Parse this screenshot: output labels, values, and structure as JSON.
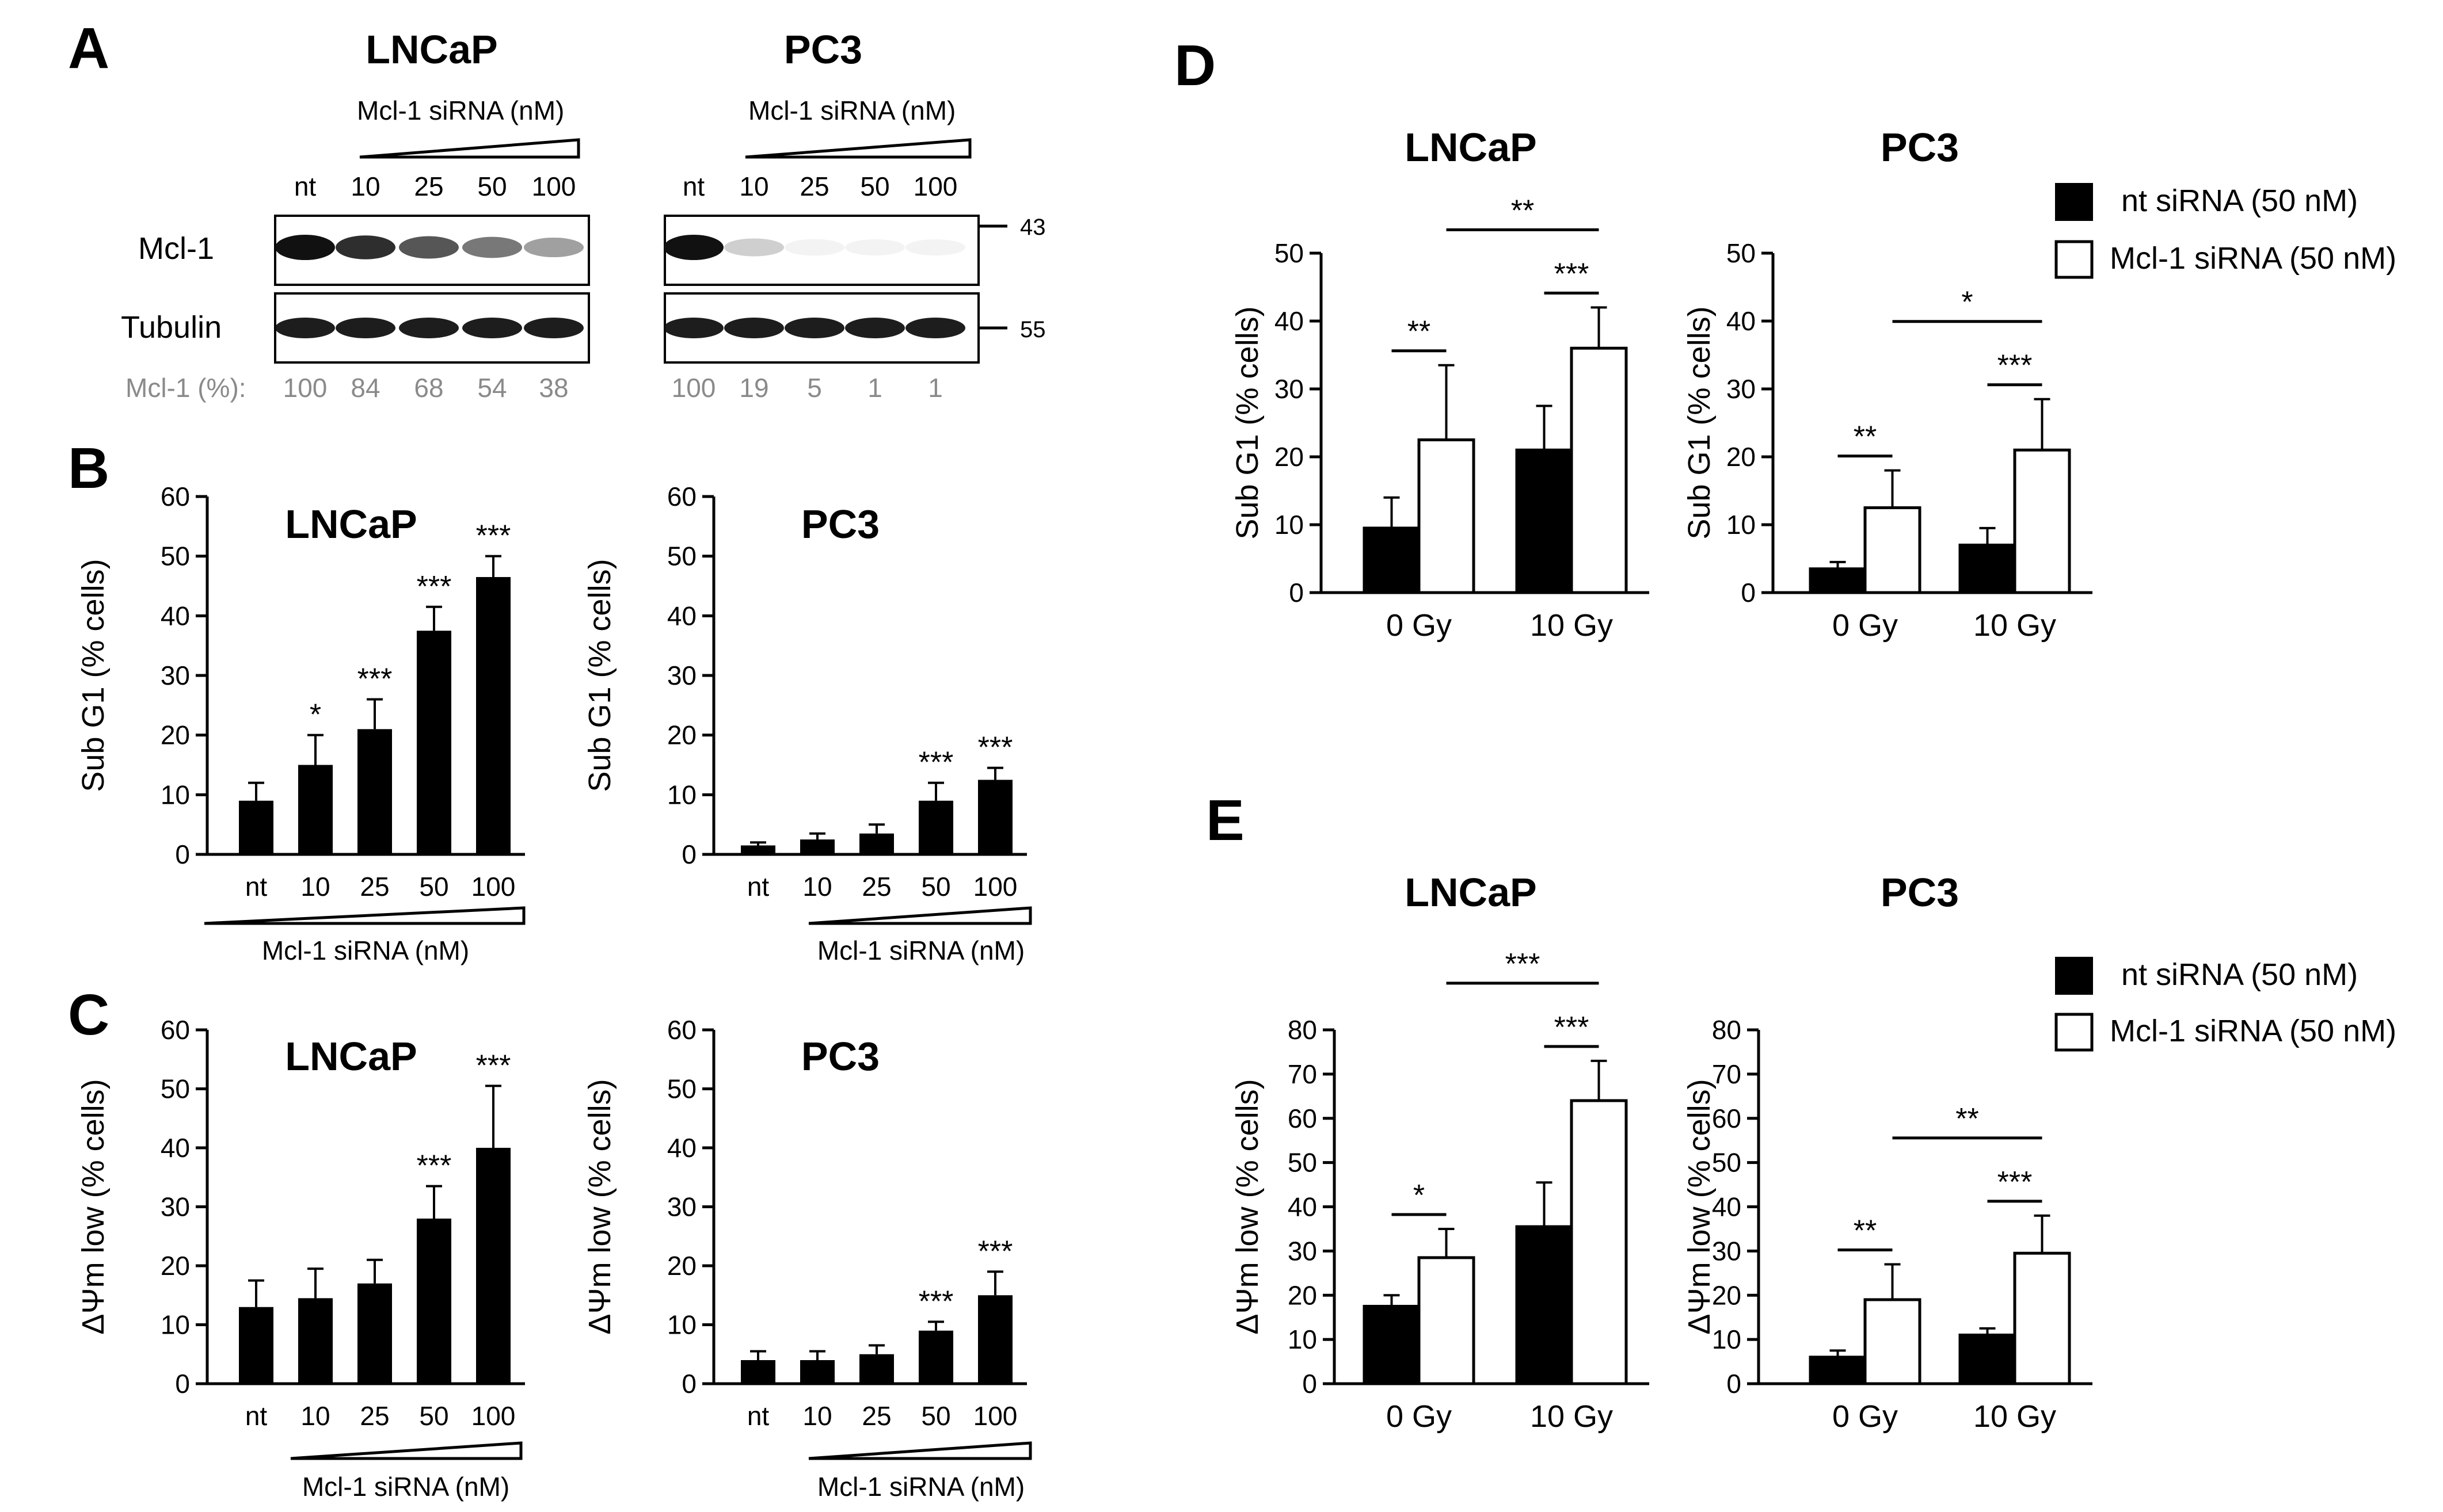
{
  "colors": {
    "ink": "#000000",
    "muted": "#8a8a8a",
    "bar_fill": "#000000",
    "bar_open": "#ffffff",
    "band": "#111111"
  },
  "panels": {
    "A": {
      "letter": "A",
      "blots": [
        {
          "cell": "LNCaP",
          "siRNA_label": "Mcl-1 siRNA  (nM)",
          "lanes": [
            "nt",
            "10",
            "25",
            "50",
            "100"
          ],
          "quant": [
            "100",
            "84",
            "68",
            "54",
            "38"
          ],
          "mcl1_fraction": [
            1.0,
            0.84,
            0.68,
            0.54,
            0.38
          ]
        },
        {
          "cell": "PC3",
          "siRNA_label": "Mcl-1 siRNA  (nM)",
          "lanes": [
            "nt",
            "10",
            "25",
            "50",
            "100"
          ],
          "quant": [
            "100",
            "19",
            "5",
            "1",
            "1"
          ],
          "mcl1_fraction": [
            1.0,
            0.19,
            0.05,
            0.01,
            0.01
          ]
        }
      ],
      "row_labels": [
        "Mcl-1",
        "Tubulin"
      ],
      "quant_label": "Mcl-1 (%):",
      "mw_markers": [
        "43",
        "55"
      ]
    },
    "B": {
      "letter": "B"
    },
    "C": {
      "letter": "C"
    },
    "D": {
      "letter": "D"
    },
    "E": {
      "letter": "E"
    }
  },
  "legend": {
    "items": [
      "nt siRNA (50 nM)",
      "Mcl-1 siRNA (50 nM)"
    ]
  },
  "chart_data": [
    {
      "panel": "B",
      "type": "bar",
      "title": "LNCaP",
      "ylabel": "Sub G1 (% cells)",
      "xlabel": "Mcl-1 siRNA  (nM)",
      "ylim": [
        0,
        60
      ],
      "yticks": [
        "0",
        "10",
        "20",
        "30",
        "40",
        "50",
        "60"
      ],
      "categories": [
        "nt",
        "10",
        "25",
        "50",
        "100"
      ],
      "values": [
        9,
        15,
        21,
        37.5,
        46.5
      ],
      "errors": [
        3,
        5,
        5,
        4,
        3.5
      ],
      "sig": [
        "",
        "*",
        "***",
        "***",
        "***"
      ]
    },
    {
      "panel": "B",
      "type": "bar",
      "title": "PC3",
      "ylabel": "Sub G1 (% cells)",
      "xlabel": "Mcl-1 siRNA  (nM)",
      "ylim": [
        0,
        60
      ],
      "yticks": [
        "0",
        "10",
        "20",
        "30",
        "40",
        "50",
        "60"
      ],
      "categories": [
        "nt",
        "10",
        "25",
        "50",
        "100"
      ],
      "values": [
        1.5,
        2.5,
        3.5,
        9,
        12.5
      ],
      "errors": [
        0.5,
        1,
        1.5,
        3,
        2
      ],
      "sig": [
        "",
        "",
        "",
        "***",
        "***"
      ]
    },
    {
      "panel": "C",
      "type": "bar",
      "title": "LNCaP",
      "ylabel": "ΔΨm low (% cells)",
      "xlabel": "Mcl-1 siRNA  (nM)",
      "ylim": [
        0,
        60
      ],
      "yticks": [
        "0",
        "10",
        "20",
        "30",
        "40",
        "50",
        "60"
      ],
      "categories": [
        "nt",
        "10",
        "25",
        "50",
        "100"
      ],
      "values": [
        13,
        14.5,
        17,
        28,
        40
      ],
      "errors": [
        4.5,
        5,
        4,
        5.5,
        10.5
      ],
      "sig": [
        "",
        "",
        "",
        "***",
        "***"
      ]
    },
    {
      "panel": "C",
      "type": "bar",
      "title": "PC3",
      "ylabel": "ΔΨm low (% cells)",
      "xlabel": "Mcl-1 siRNA  (nM)",
      "ylim": [
        0,
        60
      ],
      "yticks": [
        "0",
        "10",
        "20",
        "30",
        "40",
        "50",
        "60"
      ],
      "categories": [
        "nt",
        "10",
        "25",
        "50",
        "100"
      ],
      "values": [
        4,
        4,
        5,
        9,
        15
      ],
      "errors": [
        1.5,
        1.5,
        1.5,
        1.5,
        4
      ],
      "sig": [
        "",
        "",
        "",
        "***",
        "***"
      ]
    },
    {
      "panel": "D",
      "type": "bar",
      "title": "LNCaP",
      "ylabel": "Sub G1 (% cells)",
      "ylim": [
        0,
        50
      ],
      "yticks": [
        "0",
        "10",
        "20",
        "30",
        "40",
        "50"
      ],
      "categories": [
        "0 Gy",
        "10 Gy"
      ],
      "series": [
        {
          "name": "nt siRNA (50 nM)",
          "values": [
            9.5,
            21
          ],
          "errors": [
            4.5,
            6.5
          ]
        },
        {
          "name": "Mcl-1 siRNA (50 nM)",
          "values": [
            22.5,
            36
          ],
          "errors": [
            11,
            6
          ]
        }
      ],
      "sig_within": [
        "**",
        "***"
      ],
      "sig_between": "**"
    },
    {
      "panel": "D",
      "type": "bar",
      "title": "PC3",
      "ylabel": "Sub G1 (% cells)",
      "ylim": [
        0,
        50
      ],
      "yticks": [
        "0",
        "10",
        "20",
        "30",
        "40",
        "50"
      ],
      "categories": [
        "0 Gy",
        "10 Gy"
      ],
      "series": [
        {
          "name": "nt siRNA (50 nM)",
          "values": [
            3.5,
            7
          ],
          "errors": [
            1,
            2.5
          ]
        },
        {
          "name": "Mcl-1 siRNA (50 nM)",
          "values": [
            12.5,
            21
          ],
          "errors": [
            5.5,
            7.5
          ]
        }
      ],
      "sig_within": [
        "**",
        "***"
      ],
      "sig_between": "*"
    },
    {
      "panel": "E",
      "type": "bar",
      "title": "LNCaP",
      "ylabel": "ΔΨm low (% cells)",
      "ylim": [
        0,
        80
      ],
      "yticks": [
        "0",
        "10",
        "20",
        "30",
        "40",
        "50",
        "60",
        "70",
        "80"
      ],
      "categories": [
        "0 Gy",
        "10 Gy"
      ],
      "series": [
        {
          "name": "nt siRNA (50 nM)",
          "values": [
            17.5,
            35.5
          ],
          "errors": [
            2.5,
            10
          ]
        },
        {
          "name": "Mcl-1 siRNA (50 nM)",
          "values": [
            28.5,
            64
          ],
          "errors": [
            6.5,
            9
          ]
        }
      ],
      "sig_within": [
        "*",
        "***"
      ],
      "sig_between": "***"
    },
    {
      "panel": "E",
      "type": "bar",
      "title": "PC3",
      "ylabel": "ΔΨm low (% cells)",
      "ylim": [
        0,
        80
      ],
      "yticks": [
        "0",
        "10",
        "20",
        "30",
        "40",
        "50",
        "60",
        "70",
        "80"
      ],
      "categories": [
        "0 Gy",
        "10 Gy"
      ],
      "series": [
        {
          "name": "nt siRNA (50 nM)",
          "values": [
            6,
            11
          ],
          "errors": [
            1.5,
            1.5
          ]
        },
        {
          "name": "Mcl-1 siRNA (50 nM)",
          "values": [
            19,
            29.5
          ],
          "errors": [
            8,
            8.5
          ]
        }
      ],
      "sig_within": [
        "**",
        "***"
      ],
      "sig_between": "**"
    }
  ]
}
